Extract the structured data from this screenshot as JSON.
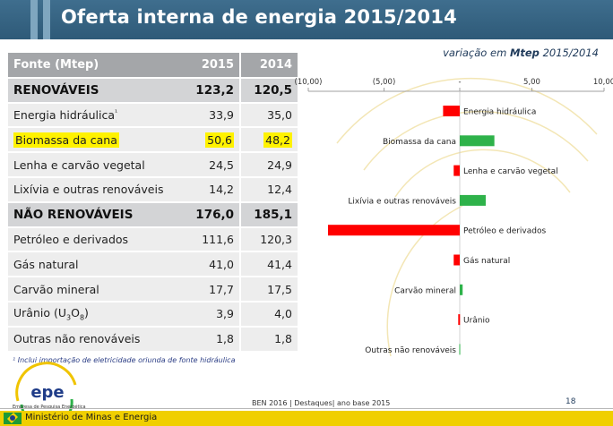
{
  "header": {
    "title": "Oferta interna de energia 2015/2014"
  },
  "table": {
    "columns": [
      "Fonte (Mtep)",
      "2015",
      "2014"
    ],
    "rows": [
      {
        "label": "RENOVÁVEIS",
        "v2015": "123,2",
        "v2014": "120,5"
      },
      {
        "label": "Energia hidráulica",
        "mark": "¹",
        "v2015": "33,9",
        "v2014": "35,0"
      },
      {
        "label": "Biomassa da cana",
        "v2015": "50,6",
        "v2014": "48,2"
      },
      {
        "label": "Lenha e carvão vegetal",
        "v2015": "24,5",
        "v2014": "24,9"
      },
      {
        "label": "Lixívia e outras renováveis",
        "v2015": "14,2",
        "v2014": "12,4"
      },
      {
        "label": "NÃO RENOVÁVEIS",
        "v2015": "176,0",
        "v2014": "185,1"
      },
      {
        "label": "Petróleo e derivados",
        "v2015": "111,6",
        "v2014": "120,3"
      },
      {
        "label": "Gás natural",
        "v2015": "41,0",
        "v2014": "41,4"
      },
      {
        "label": "Carvão mineral",
        "v2015": "17,7",
        "v2014": "17,5"
      },
      {
        "label": "Urânio (U",
        "sub1": "3",
        "mid": "O",
        "sub2": "8",
        "tail": ")",
        "v2015": "3,9",
        "v2014": "4,0"
      },
      {
        "label": "Outras não renováveis",
        "v2015": "1,8",
        "v2014": "1,8"
      }
    ],
    "footnote": "¹ Inclui importação de eletricidade oriunda de fonte hidráulica"
  },
  "chart_data": {
    "type": "bar",
    "orientation": "horizontal",
    "title_parts": {
      "pre": "variação em ",
      "bold": "Mtep",
      "post": " 2015/2014"
    },
    "xlim": [
      -10,
      10
    ],
    "ticks": [
      {
        "value": -10,
        "label": "(10,00)"
      },
      {
        "value": -5,
        "label": "(5,00)"
      },
      {
        "value": 0,
        "label": "-"
      },
      {
        "value": 5,
        "label": "5,00"
      },
      {
        "value": 10,
        "label": "10,00"
      }
    ],
    "colors": {
      "positive": "#2eb24a",
      "negative": "#ff0000",
      "axis": "#a0a0a0"
    },
    "categories": [
      "Energia hidráulica",
      "Biomassa da cana",
      "Lenha e carvão vegetal",
      "Lixívia e outras renováveis",
      "Petróleo e derivados",
      "Gás natural",
      "Carvão mineral",
      "Urânio",
      "Outras não renováveis"
    ],
    "values": [
      -1.1,
      2.4,
      -0.4,
      1.8,
      -8.7,
      -0.4,
      0.2,
      -0.1,
      0.0
    ]
  },
  "footer": {
    "logo_text": "epe",
    "logo_sub": "Empresa de Pesquisa Energética",
    "center": "BEN 2016 | Destaques| ano base 2015",
    "page": "18",
    "ministry": "Ministério de Minas e Energia"
  }
}
